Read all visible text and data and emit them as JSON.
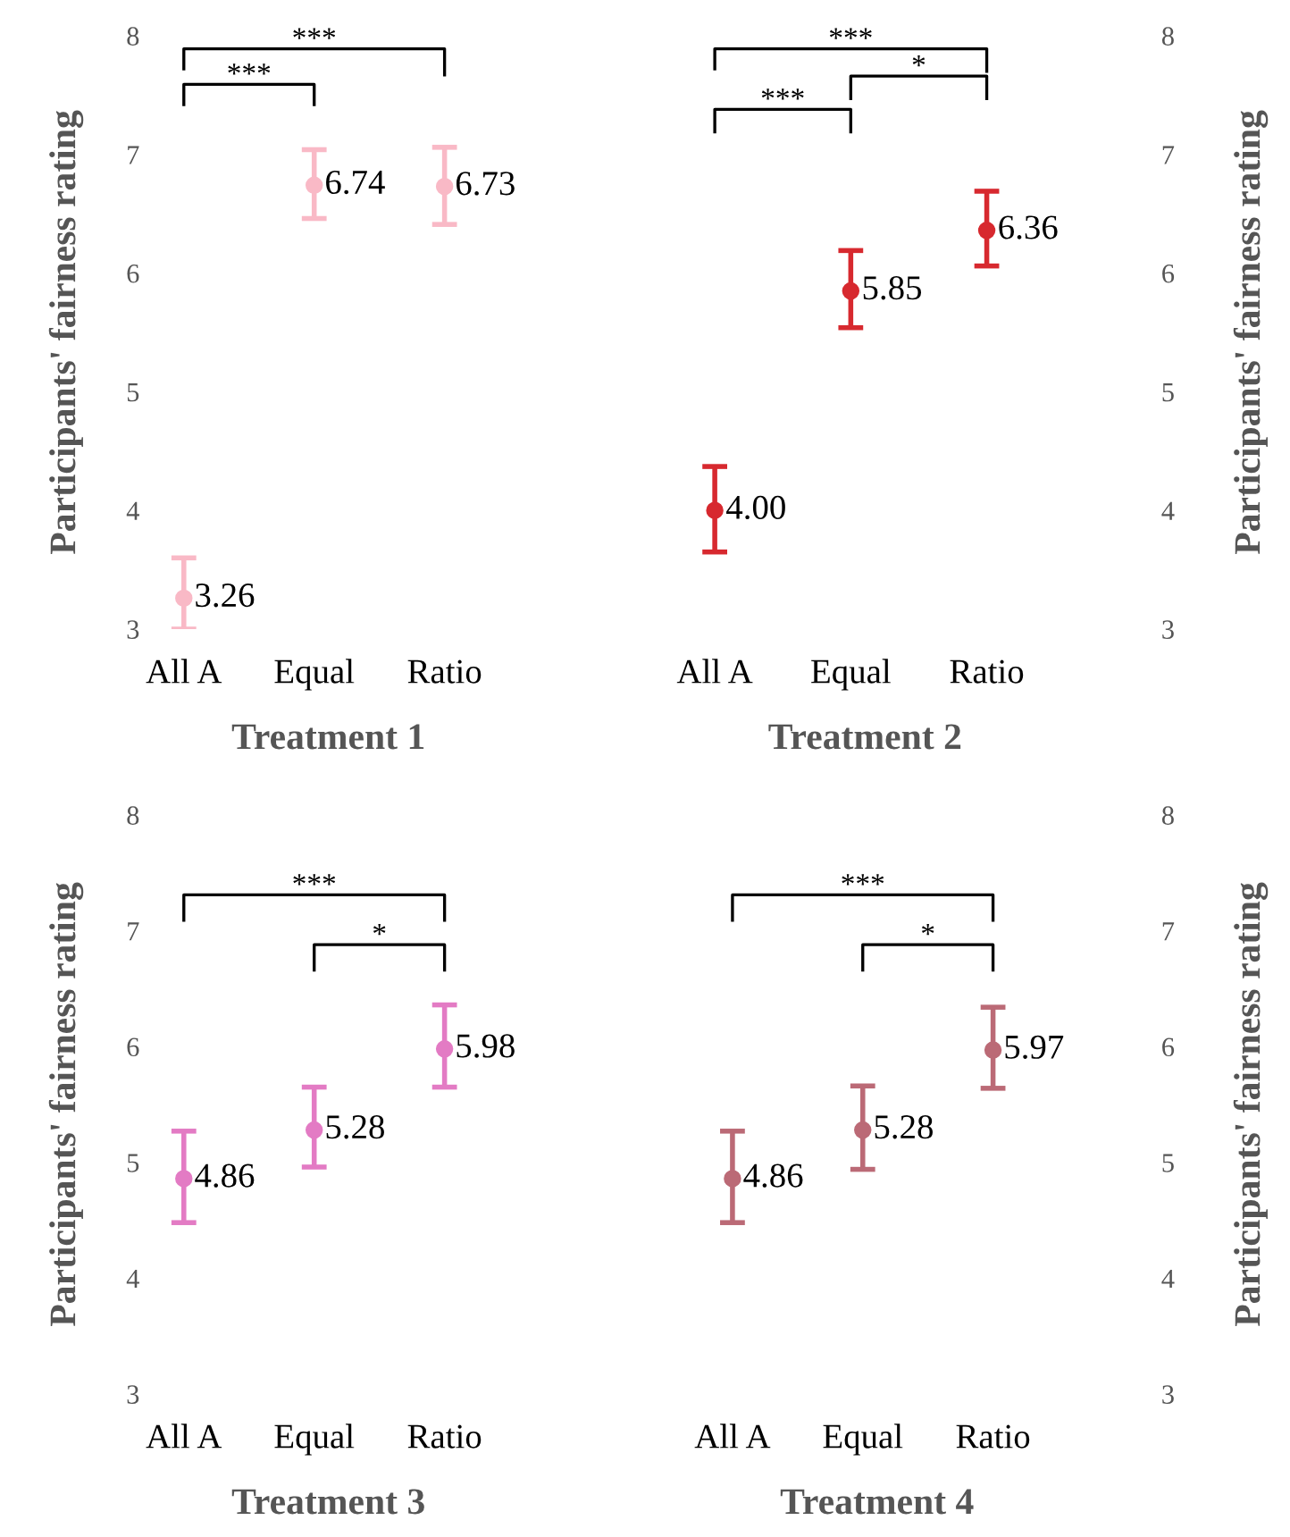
{
  "chart_data": [
    {
      "type": "scatter",
      "xlabel": "Treatment 1",
      "ylabel": "Participants' fairness rating",
      "categories": [
        "All A",
        "Equal",
        "Ratio"
      ],
      "series": [
        {
          "color": "#f9b9c6",
          "values": [
            3.26,
            6.74,
            6.73
          ],
          "value_labels": [
            "3.26",
            "6.74",
            "6.73"
          ],
          "errors": [
            [
              3.0,
              3.6
            ],
            [
              6.46,
              7.04
            ],
            [
              6.41,
              7.06
            ]
          ]
        }
      ],
      "ylim": [
        3,
        8
      ],
      "yticks": [
        3,
        4,
        5,
        6,
        7,
        8
      ],
      "marker": "circle",
      "annotations": [
        "***",
        "***"
      ]
    },
    {
      "type": "scatter",
      "xlabel": "Treatment 2",
      "ylabel": "Participants' fairness rating",
      "categories": [
        "All A",
        "Equal",
        "Ratio"
      ],
      "series": [
        {
          "color": "#d7292f",
          "values": [
            4.0,
            5.85,
            6.36
          ],
          "value_labels": [
            "4.00",
            "5.85",
            "6.36"
          ],
          "errors": [
            [
              3.65,
              4.37
            ],
            [
              5.54,
              6.19
            ],
            [
              6.06,
              6.69
            ]
          ]
        }
      ],
      "ylim": [
        3,
        8
      ],
      "yticks": [
        3,
        4,
        5,
        6,
        7,
        8
      ],
      "marker": "circle",
      "annotations": [
        "***",
        "*",
        "***"
      ]
    },
    {
      "type": "scatter",
      "xlabel": "Treatment 3",
      "ylabel": "Participants' fairness rating",
      "categories": [
        "All A",
        "Equal",
        "Ratio"
      ],
      "series": [
        {
          "color": "#e37bc4",
          "values": [
            4.86,
            5.28,
            5.98
          ],
          "value_labels": [
            "4.86",
            "5.28",
            "5.98"
          ],
          "errors": [
            [
              4.48,
              5.27
            ],
            [
              4.96,
              5.65
            ],
            [
              5.65,
              6.36
            ]
          ]
        }
      ],
      "ylim": [
        3,
        8
      ],
      "yticks": [
        3,
        4,
        5,
        6,
        7,
        8
      ],
      "marker": "circle",
      "annotations": [
        "***",
        "*"
      ]
    },
    {
      "type": "scatter",
      "xlabel": "Treatment 4",
      "ylabel": "Participants' fairness rating",
      "categories": [
        "All A",
        "Equal",
        "Ratio"
      ],
      "series": [
        {
          "color": "#bb6a76",
          "values": [
            4.86,
            5.28,
            5.97
          ],
          "value_labels": [
            "4.86",
            "5.28",
            "5.97"
          ],
          "errors": [
            [
              4.48,
              5.27
            ],
            [
              4.94,
              5.66
            ],
            [
              5.64,
              6.34
            ]
          ]
        }
      ],
      "ylim": [
        3,
        8
      ],
      "yticks": [
        3,
        4,
        5,
        6,
        7,
        8
      ],
      "marker": "circle",
      "annotations": [
        "***",
        "*"
      ]
    }
  ]
}
